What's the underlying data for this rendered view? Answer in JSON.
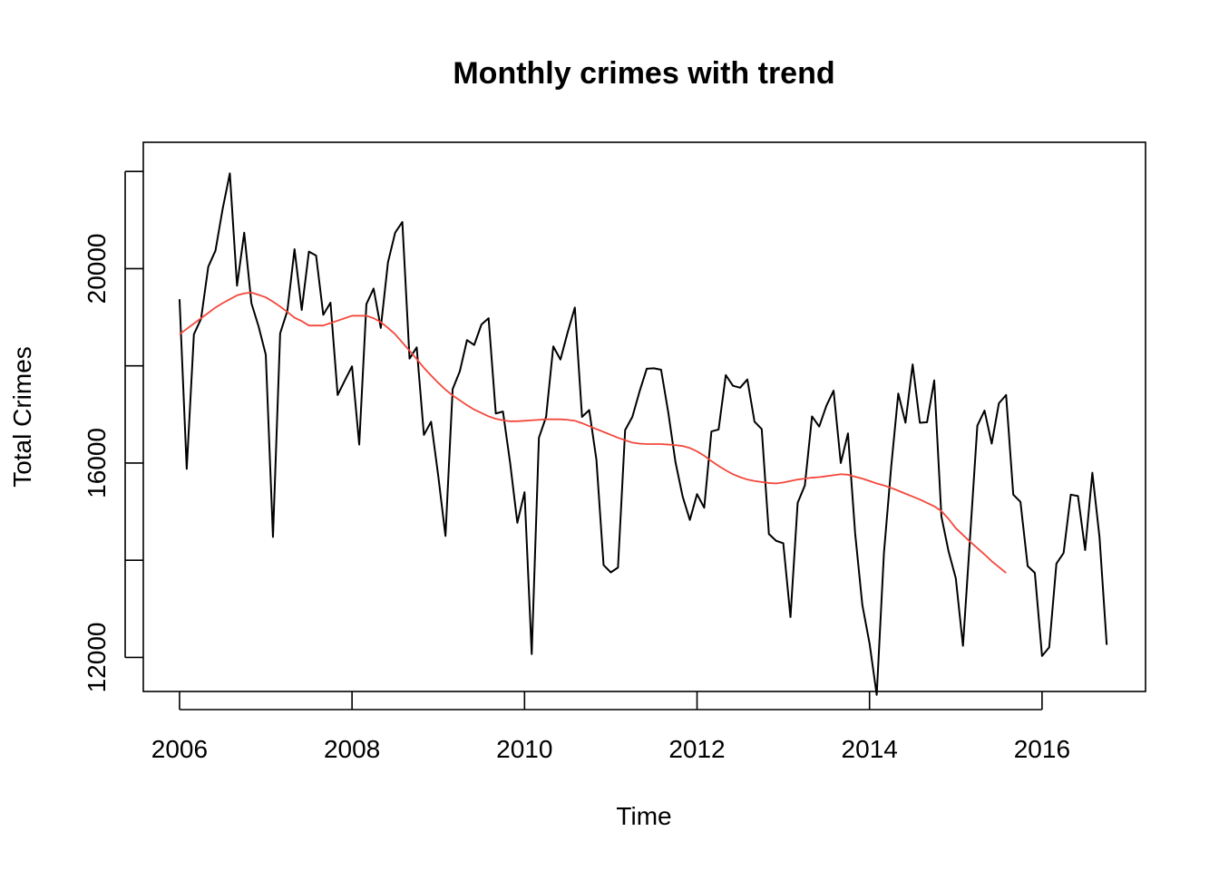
{
  "chart_data": {
    "type": "line",
    "title": "Monthly crimes with trend",
    "xlabel": "Time",
    "ylabel": "Total Crimes",
    "xlim": [
      2005.58,
      2017.2
    ],
    "ylim": [
      11300,
      22600
    ],
    "x_ticks": [
      2006,
      2008,
      2010,
      2012,
      2014,
      2016
    ],
    "x_tick_labels": [
      "2006",
      "2008",
      "2010",
      "2012",
      "2014",
      "2016"
    ],
    "y_ticks": [
      12000,
      14000,
      16000,
      18000,
      20000,
      22000
    ],
    "y_tick_labels": [
      "12000",
      "",
      "16000",
      "",
      "20000",
      ""
    ],
    "grid": false,
    "x_start": 2006,
    "x_step": 0.0833333,
    "series": [
      {
        "color": "#000000",
        "values": [
          19370,
          15880,
          18650,
          18970,
          20040,
          20370,
          21230,
          21960,
          19650,
          20740,
          19290,
          18810,
          18230,
          14480,
          18670,
          19130,
          20400,
          19150,
          20350,
          20270,
          19050,
          19300,
          17400,
          17700,
          17990,
          16380,
          19270,
          19590,
          18780,
          20130,
          20740,
          20960,
          18150,
          18380,
          16580,
          16850,
          15730,
          14500,
          17520,
          17890,
          18530,
          18430,
          18850,
          18980,
          17020,
          17060,
          16000,
          14770,
          15400,
          12070,
          16520,
          16950,
          18400,
          18130,
          18690,
          19200,
          16950,
          17090,
          16070,
          13900,
          13750,
          13850,
          16680,
          16950,
          17470,
          17940,
          17950,
          17920,
          17040,
          16020,
          15310,
          14830,
          15360,
          15080,
          16650,
          16690,
          17810,
          17590,
          17550,
          17720,
          16850,
          16700,
          14540,
          14400,
          14350,
          12830,
          15180,
          15540,
          16960,
          16750,
          17180,
          17490,
          16000,
          16610,
          14550,
          13080,
          12290,
          11230,
          14140,
          15900,
          17430,
          16830,
          18030,
          16830,
          16840,
          17700,
          14900,
          14180,
          13630,
          12240,
          14500,
          16770,
          17080,
          16400,
          17230,
          17400,
          15350,
          15200,
          13880,
          13740,
          12030,
          12210,
          13930,
          14150,
          15350,
          15320,
          14210,
          15800,
          14470,
          12260
        ]
      },
      {
        "color": "#f4473b",
        "values": [
          18650,
          18760,
          18870,
          18980,
          19090,
          19200,
          19290,
          19370,
          19450,
          19490,
          19510,
          19460,
          19410,
          19320,
          19220,
          19110,
          18990,
          18920,
          18830,
          18830,
          18830,
          18880,
          18930,
          18980,
          19030,
          19030,
          19030,
          18980,
          18900,
          18780,
          18650,
          18480,
          18310,
          18140,
          17960,
          17800,
          17650,
          17510,
          17390,
          17290,
          17190,
          17100,
          17030,
          16960,
          16910,
          16880,
          16860,
          16860,
          16870,
          16880,
          16890,
          16900,
          16900,
          16900,
          16890,
          16870,
          16820,
          16760,
          16700,
          16640,
          16580,
          16520,
          16470,
          16420,
          16400,
          16390,
          16390,
          16390,
          16380,
          16370,
          16350,
          16310,
          16240,
          16150,
          16040,
          15940,
          15850,
          15770,
          15710,
          15660,
          15630,
          15610,
          15590,
          15580,
          15600,
          15630,
          15660,
          15680,
          15700,
          15710,
          15730,
          15750,
          15770,
          15760,
          15720,
          15680,
          15630,
          15580,
          15540,
          15490,
          15430,
          15370,
          15310,
          15250,
          15180,
          15110,
          15010,
          14850,
          14660,
          14520,
          14380,
          14250,
          14120,
          13980,
          13860,
          13740
        ]
      }
    ]
  }
}
